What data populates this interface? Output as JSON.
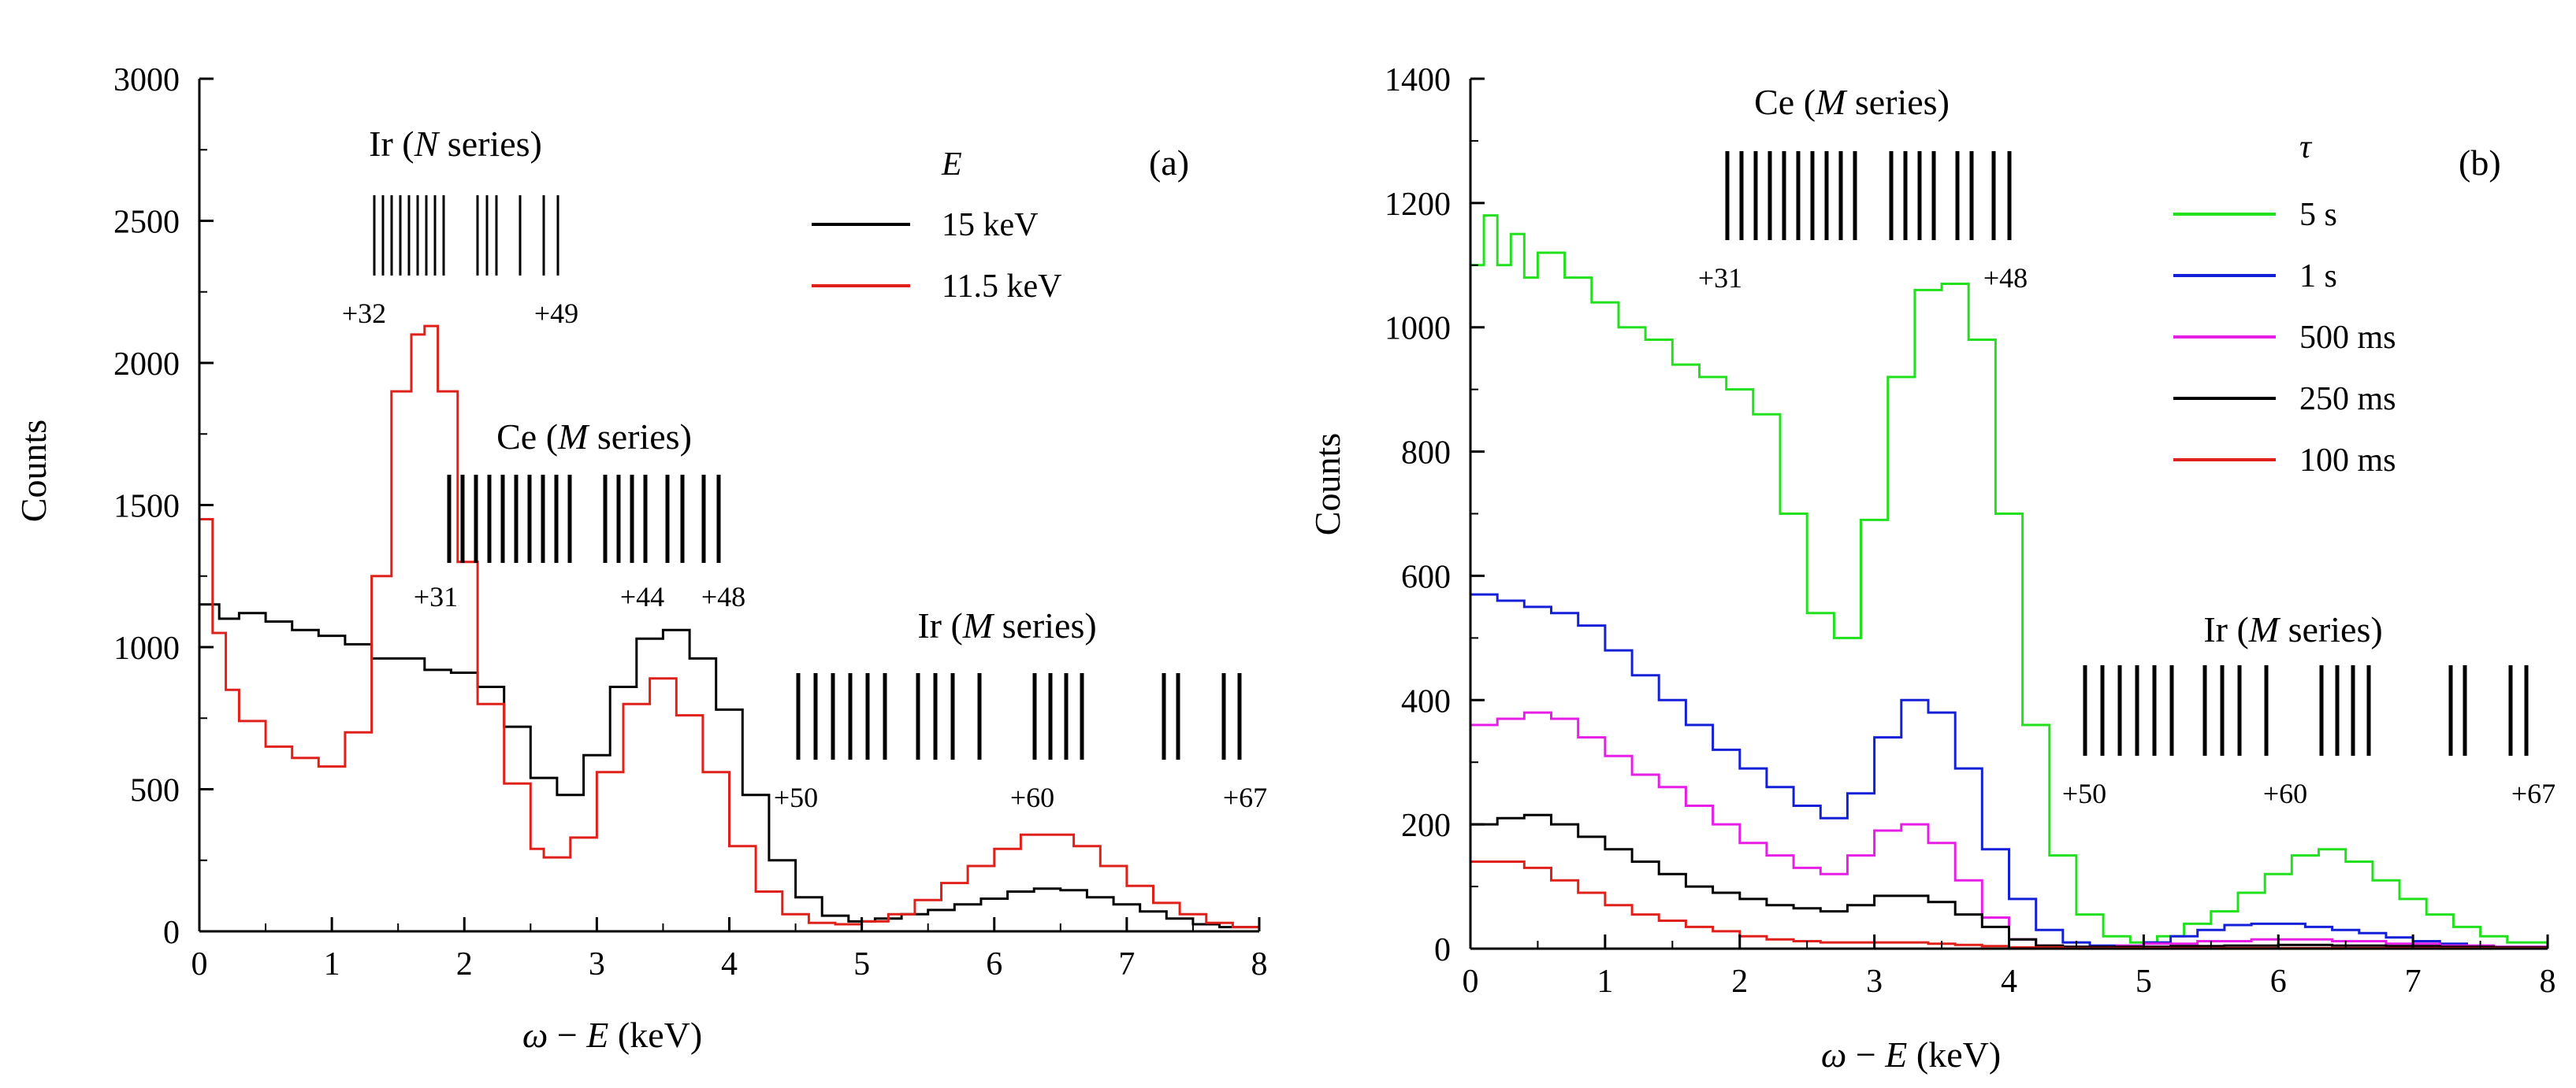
{
  "chart_data": [
    {
      "type": "line",
      "panel_label": "(a)",
      "xlabel_parts": [
        "ω",
        " − ",
        "E",
        " (keV)"
      ],
      "ylabel": "Counts",
      "xlim": [
        0,
        8
      ],
      "ylim": [
        0,
        3000
      ],
      "xticks": [
        0,
        1,
        2,
        3,
        4,
        5,
        6,
        7,
        8
      ],
      "yticks": [
        0,
        500,
        1000,
        1500,
        2000,
        2500,
        3000
      ],
      "legend_title": "E",
      "legend_position": "top-right",
      "series": [
        {
          "name": "15 keV",
          "color": "#000000",
          "x": [
            0,
            0.15,
            0.3,
            0.5,
            0.7,
            0.9,
            1.1,
            1.3,
            1.5,
            1.7,
            1.9,
            2.1,
            2.3,
            2.5,
            2.7,
            2.9,
            3.1,
            3.3,
            3.5,
            3.7,
            3.9,
            4.1,
            4.3,
            4.5,
            4.7,
            4.9,
            5.1,
            5.3,
            5.5,
            5.7,
            5.9,
            6.1,
            6.3,
            6.5,
            6.7,
            6.9,
            7.1,
            7.3,
            7.5,
            7.7,
            8.0
          ],
          "y": [
            1150,
            1100,
            1120,
            1090,
            1060,
            1040,
            1010,
            960,
            960,
            920,
            910,
            860,
            720,
            540,
            480,
            620,
            860,
            1030,
            1060,
            960,
            780,
            480,
            250,
            120,
            55,
            35,
            45,
            60,
            75,
            95,
            115,
            140,
            150,
            145,
            120,
            95,
            70,
            45,
            25,
            15,
            5
          ]
        },
        {
          "name": "11.5 keV",
          "color": "#e0201b",
          "x": [
            0,
            0.1,
            0.2,
            0.3,
            0.5,
            0.7,
            0.9,
            1.1,
            1.3,
            1.45,
            1.6,
            1.7,
            1.8,
            1.95,
            2.1,
            2.3,
            2.5,
            2.6,
            2.8,
            3.0,
            3.2,
            3.4,
            3.6,
            3.8,
            4.0,
            4.2,
            4.4,
            4.6,
            4.8,
            5.0,
            5.2,
            5.4,
            5.6,
            5.8,
            6.0,
            6.2,
            6.4,
            6.6,
            6.8,
            7.0,
            7.2,
            7.4,
            7.6,
            7.8,
            8.0
          ],
          "y": [
            1450,
            1050,
            850,
            740,
            650,
            610,
            580,
            700,
            1250,
            1900,
            2100,
            2130,
            1900,
            1300,
            800,
            520,
            290,
            260,
            330,
            560,
            800,
            890,
            760,
            560,
            300,
            140,
            60,
            30,
            25,
            35,
            60,
            110,
            170,
            230,
            290,
            340,
            340,
            300,
            230,
            160,
            100,
            60,
            30,
            15,
            5
          ]
        }
      ],
      "annotations": [
        {
          "text": "Ir (",
          "italic": "N",
          "text_after": " series)",
          "ticks_label_start": "+32",
          "ticks_label_end": "+49"
        },
        {
          "text": "Ce (",
          "italic": "M",
          "text_after": " series)",
          "ticks_label_start": "+31",
          "ticks_label_mid": "+44",
          "ticks_label_end": "+48"
        },
        {
          "text": "Ir (",
          "italic": "M",
          "text_after": " series)",
          "ticks_label_start": "+50",
          "ticks_label_mid": "+60",
          "ticks_label_end": "+67"
        }
      ]
    },
    {
      "type": "line",
      "panel_label": "(b)",
      "xlabel_parts": [
        "ω",
        " − ",
        "E",
        " (keV)"
      ],
      "ylabel": "Counts",
      "xlim": [
        0,
        8
      ],
      "ylim": [
        0,
        1400
      ],
      "xticks": [
        0,
        1,
        2,
        3,
        4,
        5,
        6,
        7,
        8
      ],
      "yticks": [
        0,
        200,
        400,
        600,
        800,
        1000,
        1200,
        1400
      ],
      "legend_title": "τ",
      "legend_position": "top-right",
      "series": [
        {
          "name": "5 s",
          "color": "#22e01e",
          "x": [
            0,
            0.1,
            0.2,
            0.3,
            0.4,
            0.5,
            0.7,
            0.9,
            1.1,
            1.3,
            1.5,
            1.7,
            1.9,
            2.1,
            2.3,
            2.5,
            2.7,
            2.9,
            3.1,
            3.3,
            3.5,
            3.7,
            3.9,
            4.1,
            4.3,
            4.5,
            4.7,
            4.9,
            5.1,
            5.3,
            5.5,
            5.7,
            5.9,
            6.1,
            6.3,
            6.5,
            6.7,
            6.9,
            7.1,
            7.3,
            7.5,
            7.7,
            8.0
          ],
          "y": [
            1100,
            1180,
            1100,
            1150,
            1080,
            1120,
            1080,
            1040,
            1000,
            980,
            940,
            920,
            900,
            860,
            700,
            540,
            500,
            690,
            920,
            1060,
            1070,
            980,
            700,
            360,
            150,
            55,
            20,
            10,
            20,
            40,
            60,
            90,
            120,
            150,
            160,
            140,
            110,
            80,
            55,
            35,
            20,
            10,
            3
          ]
        },
        {
          "name": "1 s",
          "color": "#1420d8",
          "x": [
            0,
            0.2,
            0.4,
            0.6,
            0.8,
            1.0,
            1.2,
            1.4,
            1.6,
            1.8,
            2.0,
            2.2,
            2.4,
            2.6,
            2.8,
            3.0,
            3.2,
            3.4,
            3.6,
            3.8,
            4.0,
            4.2,
            4.4,
            4.6,
            4.8,
            5.0,
            5.2,
            5.4,
            5.6,
            5.8,
            6.0,
            6.2,
            6.4,
            6.6,
            6.8,
            7.0,
            7.2,
            7.4,
            7.6,
            8.0
          ],
          "y": [
            570,
            560,
            550,
            540,
            520,
            480,
            440,
            400,
            360,
            320,
            290,
            260,
            230,
            210,
            250,
            340,
            400,
            380,
            290,
            160,
            80,
            30,
            10,
            5,
            5,
            10,
            20,
            30,
            38,
            40,
            40,
            35,
            30,
            25,
            18,
            12,
            8,
            5,
            3,
            1
          ]
        },
        {
          "name": "500 ms",
          "color": "#e61ee6",
          "x": [
            0,
            0.2,
            0.4,
            0.6,
            0.8,
            1.0,
            1.2,
            1.4,
            1.6,
            1.8,
            2.0,
            2.2,
            2.4,
            2.6,
            2.8,
            3.0,
            3.2,
            3.4,
            3.6,
            3.8,
            4.0,
            4.2,
            4.4,
            4.6,
            4.8,
            5.0,
            5.4,
            5.8,
            6.0,
            6.4,
            6.8,
            7.2,
            7.6,
            8.0
          ],
          "y": [
            360,
            370,
            380,
            370,
            340,
            310,
            280,
            260,
            230,
            200,
            170,
            150,
            130,
            120,
            150,
            190,
            200,
            170,
            110,
            50,
            15,
            5,
            3,
            3,
            5,
            8,
            12,
            15,
            15,
            12,
            8,
            5,
            3,
            1
          ]
        },
        {
          "name": "250 ms",
          "color": "#000000",
          "x": [
            0,
            0.2,
            0.4,
            0.6,
            0.8,
            1.0,
            1.2,
            1.4,
            1.6,
            1.8,
            2.0,
            2.2,
            2.4,
            2.6,
            2.8,
            3.0,
            3.2,
            3.4,
            3.6,
            3.8,
            4.0,
            4.2,
            4.4,
            4.8,
            5.2,
            5.6,
            6.0,
            6.4,
            6.8,
            7.2,
            7.6,
            8.0
          ],
          "y": [
            200,
            210,
            215,
            200,
            180,
            160,
            140,
            120,
            100,
            90,
            80,
            70,
            65,
            60,
            70,
            85,
            85,
            75,
            55,
            35,
            15,
            5,
            3,
            3,
            4,
            5,
            6,
            5,
            4,
            3,
            2,
            1
          ]
        },
        {
          "name": "100 ms",
          "color": "#e0201b",
          "x": [
            0,
            0.2,
            0.4,
            0.6,
            0.8,
            1.0,
            1.2,
            1.4,
            1.6,
            1.8,
            2.0,
            2.2,
            2.4,
            2.6,
            2.8,
            3.0,
            3.2,
            3.4,
            3.6,
            3.8,
            4.0,
            4.4,
            4.8,
            5.2,
            5.6,
            6.0,
            6.4,
            6.8,
            7.2,
            7.6,
            8.0
          ],
          "y": [
            140,
            140,
            130,
            110,
            90,
            70,
            55,
            45,
            35,
            28,
            20,
            15,
            12,
            10,
            10,
            10,
            10,
            8,
            6,
            4,
            2,
            1,
            1,
            1,
            1,
            1,
            1,
            1,
            1,
            1,
            0
          ]
        }
      ],
      "annotations": [
        {
          "text": "Ce (",
          "italic": "M",
          "text_after": " series)",
          "ticks_label_start": "+31",
          "ticks_label_end": "+48"
        },
        {
          "text": "Ir (",
          "italic": "M",
          "text_after": " series)",
          "ticks_label_start": "+50",
          "ticks_label_mid": "+60",
          "ticks_label_end": "+67"
        }
      ]
    }
  ]
}
